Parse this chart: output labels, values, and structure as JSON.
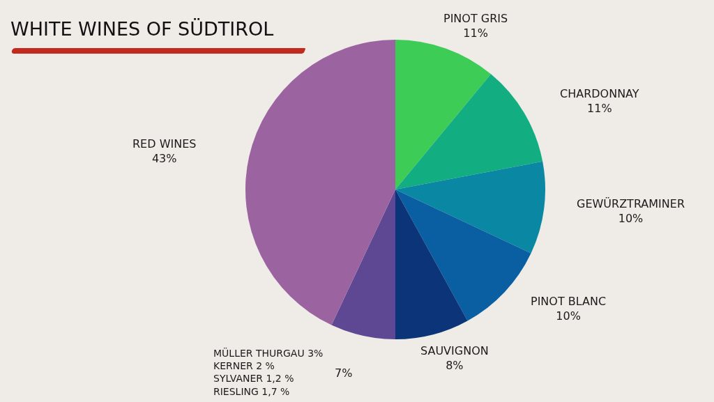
{
  "chart_data": {
    "type": "pie",
    "title": "WHITE WINES OF SÜDTIROL",
    "categories": [
      "PINOT GRIS",
      "CHARDONNAY",
      "GEWÜRZTRAMINER",
      "PINOT BLANC",
      "SAUVIGNON",
      "MÜLLER THURGAU 3%\nKERNER 2 %\nSYLVANER 1,2 %\nRIESLING 1,7 %",
      "RED WINES"
    ],
    "values": [
      11,
      11,
      10,
      10,
      8,
      7,
      43
    ],
    "value_labels": [
      "11%",
      "11%",
      "10%",
      "10%",
      "8%",
      "7%",
      "43%"
    ],
    "colors": [
      "#3dcc55",
      "#12ae82",
      "#0a88a3",
      "#0a5fa3",
      "#0b3479",
      "#5e4893",
      "#9b63a0"
    ]
  }
}
